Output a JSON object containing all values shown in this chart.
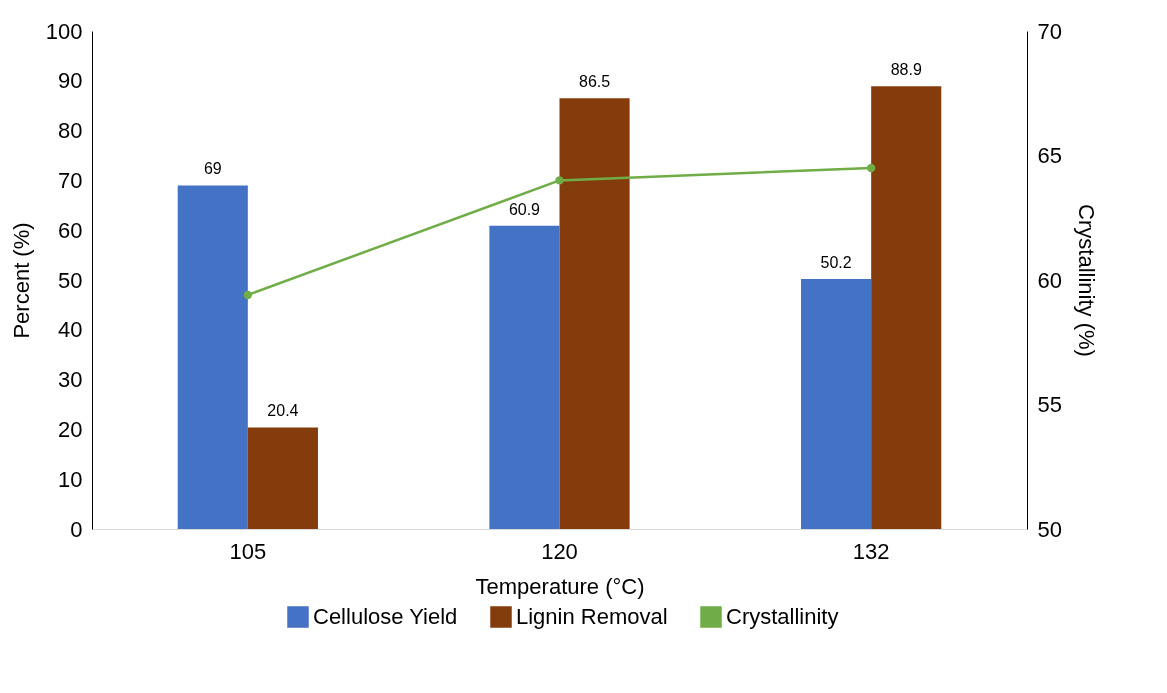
{
  "chart_data": {
    "type": "bar",
    "xlabel": "Temperature (°C)",
    "ylabel": "Percent (%)",
    "y2label": "Crystallinity (%)",
    "categories": [
      "105",
      "120",
      "132"
    ],
    "series": [
      {
        "name": "Cellulose Yield",
        "color": "#4472c4",
        "values": [
          69,
          60.9,
          50.2
        ],
        "value_labels": [
          "69",
          "60.9",
          "50.2"
        ]
      },
      {
        "name": "Lignin Removal",
        "color": "#843c0c",
        "values": [
          20.4,
          86.5,
          88.9
        ],
        "value_labels": [
          "20.4",
          "86.5",
          "88.9"
        ]
      },
      {
        "name": "Crystallinity",
        "type": "line",
        "axis": "y2",
        "color": "#70ad47",
        "values": [
          59.4,
          64.0,
          64.5
        ],
        "marker": "circle"
      }
    ],
    "ylim": [
      0,
      100
    ],
    "yticks": [
      0,
      10,
      20,
      30,
      40,
      50,
      60,
      70,
      80,
      90,
      100
    ],
    "y2lim": [
      50,
      70
    ],
    "y2ticks": [
      50,
      55,
      60,
      65,
      70
    ],
    "legend": "bottom"
  }
}
